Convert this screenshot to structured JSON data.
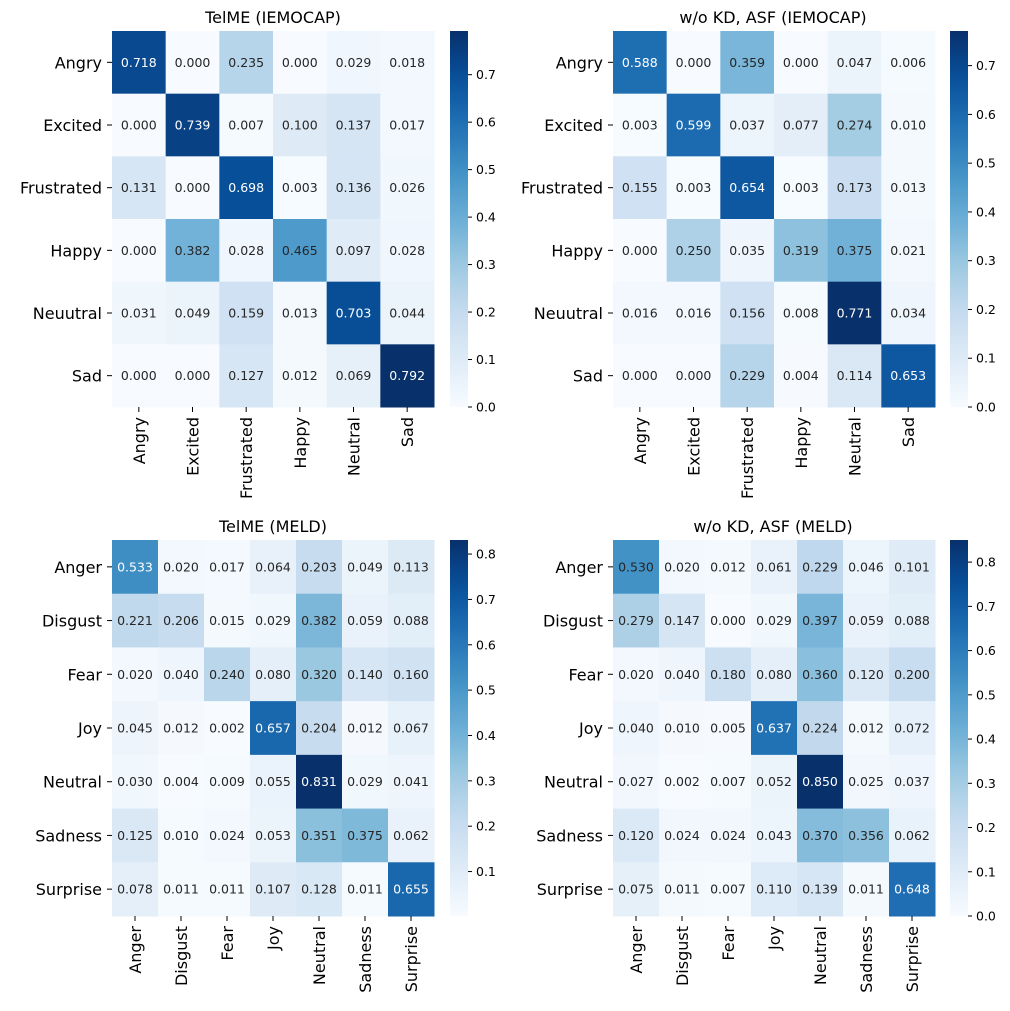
{
  "colormap": {
    "name": "Blues",
    "stops": [
      "#f7fbff",
      "#deebf7",
      "#c6dbef",
      "#9ecae1",
      "#6baed6",
      "#4292c6",
      "#2171b5",
      "#08519c",
      "#08306b"
    ]
  },
  "chart_data": [
    {
      "type": "heatmap",
      "title": "TelME (IEMOCAP)",
      "rows": [
        "Angry",
        "Excited",
        "Frustrated",
        "Happy",
        "Neuutral",
        "Sad"
      ],
      "cols": [
        "Angry",
        "Excited",
        "Frustrated",
        "Happy",
        "Neutral",
        "Sad"
      ],
      "values": [
        [
          0.718,
          0.0,
          0.235,
          0.0,
          0.029,
          0.018
        ],
        [
          0.0,
          0.739,
          0.007,
          0.1,
          0.137,
          0.017
        ],
        [
          0.131,
          0.0,
          0.698,
          0.003,
          0.136,
          0.026
        ],
        [
          0.0,
          0.382,
          0.028,
          0.465,
          0.097,
          0.028
        ],
        [
          0.031,
          0.049,
          0.159,
          0.013,
          0.703,
          0.044
        ],
        [
          0.0,
          0.0,
          0.127,
          0.012,
          0.069,
          0.792
        ]
      ],
      "vmin": 0.0,
      "vmax": 0.792,
      "colorbar_ticks": [
        "0.0",
        "0.1",
        "0.2",
        "0.3",
        "0.4",
        "0.5",
        "0.6",
        "0.7"
      ],
      "colorbar_tick_values": [
        0.0,
        0.1,
        0.2,
        0.3,
        0.4,
        0.5,
        0.6,
        0.7
      ]
    },
    {
      "type": "heatmap",
      "title": "w/o KD, ASF (IEMOCAP)",
      "rows": [
        "Angry",
        "Excited",
        "Frustrated",
        "Happy",
        "Neuutral",
        "Sad"
      ],
      "cols": [
        "Angry",
        "Excited",
        "Frustrated",
        "Happy",
        "Neutral",
        "Sad"
      ],
      "values": [
        [
          0.588,
          0.0,
          0.359,
          0.0,
          0.047,
          0.006
        ],
        [
          0.003,
          0.599,
          0.037,
          0.077,
          0.274,
          0.01
        ],
        [
          0.155,
          0.003,
          0.654,
          0.003,
          0.173,
          0.013
        ],
        [
          0.0,
          0.25,
          0.035,
          0.319,
          0.375,
          0.021
        ],
        [
          0.016,
          0.016,
          0.156,
          0.008,
          0.771,
          0.034
        ],
        [
          0.0,
          0.0,
          0.229,
          0.004,
          0.114,
          0.653
        ]
      ],
      "vmin": 0.0,
      "vmax": 0.771,
      "colorbar_ticks": [
        "0.0",
        "0.1",
        "0.2",
        "0.3",
        "0.4",
        "0.5",
        "0.6",
        "0.7"
      ],
      "colorbar_tick_values": [
        0.0,
        0.1,
        0.2,
        0.3,
        0.4,
        0.5,
        0.6,
        0.7
      ]
    },
    {
      "type": "heatmap",
      "title": "TelME (MELD)",
      "rows": [
        "Anger",
        "Disgust",
        "Fear",
        "Joy",
        "Neutral",
        "Sadness",
        "Surprise"
      ],
      "cols": [
        "Anger",
        "Disgust",
        "Fear",
        "Joy",
        "Neutral",
        "Sadness",
        "Surprise"
      ],
      "values": [
        [
          0.533,
          0.02,
          0.017,
          0.064,
          0.203,
          0.049,
          0.113
        ],
        [
          0.221,
          0.206,
          0.015,
          0.029,
          0.382,
          0.059,
          0.088
        ],
        [
          0.02,
          0.04,
          0.24,
          0.08,
          0.32,
          0.14,
          0.16
        ],
        [
          0.045,
          0.012,
          0.002,
          0.657,
          0.204,
          0.012,
          0.067
        ],
        [
          0.03,
          0.004,
          0.009,
          0.055,
          0.831,
          0.029,
          0.041
        ],
        [
          0.125,
          0.01,
          0.024,
          0.053,
          0.351,
          0.375,
          0.062
        ],
        [
          0.078,
          0.011,
          0.011,
          0.107,
          0.128,
          0.011,
          0.655
        ]
      ],
      "vmin": 0.002,
      "vmax": 0.831,
      "colorbar_ticks": [
        "0.1",
        "0.2",
        "0.3",
        "0.4",
        "0.5",
        "0.6",
        "0.7",
        "0.8"
      ],
      "colorbar_tick_values": [
        0.1,
        0.2,
        0.3,
        0.4,
        0.5,
        0.6,
        0.7,
        0.8
      ]
    },
    {
      "type": "heatmap",
      "title": "w/o KD, ASF (MELD)",
      "rows": [
        "Anger",
        "Disgust",
        "Fear",
        "Joy",
        "Neutral",
        "Sadness",
        "Surprise"
      ],
      "cols": [
        "Anger",
        "Disgust",
        "Fear",
        "Joy",
        "Neutral",
        "Sadness",
        "Surprise"
      ],
      "values": [
        [
          0.53,
          0.02,
          0.012,
          0.061,
          0.229,
          0.046,
          0.101
        ],
        [
          0.279,
          0.147,
          0.0,
          0.029,
          0.397,
          0.059,
          0.088
        ],
        [
          0.02,
          0.04,
          0.18,
          0.08,
          0.36,
          0.12,
          0.2
        ],
        [
          0.04,
          0.01,
          0.005,
          0.637,
          0.224,
          0.012,
          0.072
        ],
        [
          0.027,
          0.002,
          0.007,
          0.052,
          0.85,
          0.025,
          0.037
        ],
        [
          0.12,
          0.024,
          0.024,
          0.043,
          0.37,
          0.356,
          0.062
        ],
        [
          0.075,
          0.011,
          0.007,
          0.11,
          0.139,
          0.011,
          0.648
        ]
      ],
      "vmin": 0.0,
      "vmax": 0.85,
      "colorbar_ticks": [
        "0.0",
        "0.1",
        "0.2",
        "0.3",
        "0.4",
        "0.5",
        "0.6",
        "0.7",
        "0.8"
      ],
      "colorbar_tick_values": [
        0.0,
        0.1,
        0.2,
        0.3,
        0.4,
        0.5,
        0.6,
        0.7,
        0.8
      ]
    }
  ]
}
